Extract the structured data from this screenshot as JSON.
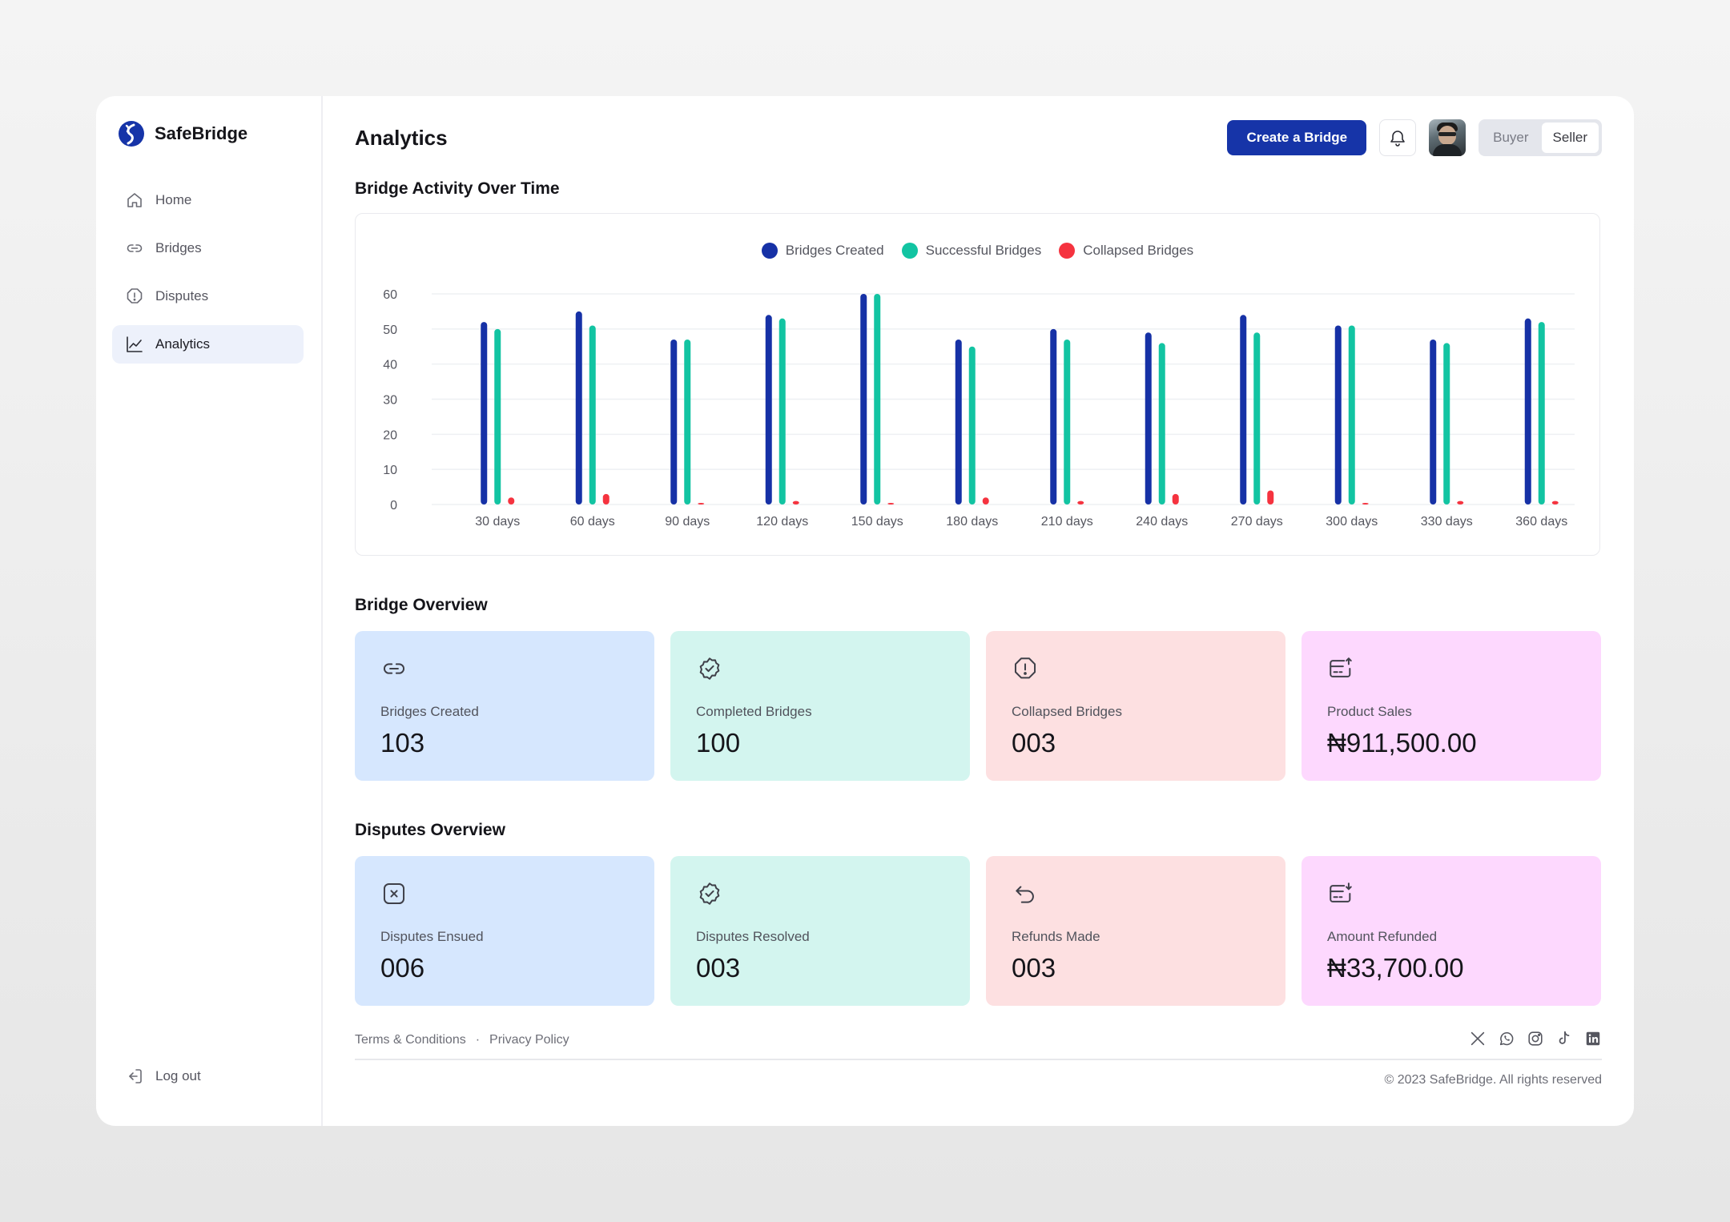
{
  "app": {
    "name": "SafeBridge"
  },
  "sidebar": {
    "items": [
      {
        "label": "Home",
        "icon": "home-icon"
      },
      {
        "label": "Bridges",
        "icon": "link-icon"
      },
      {
        "label": "Disputes",
        "icon": "alert-octagon-icon"
      },
      {
        "label": "Analytics",
        "icon": "line-chart-icon",
        "active": true
      }
    ],
    "logout_label": "Log out"
  },
  "header": {
    "title": "Analytics",
    "create_label": "Create a Bridge",
    "toggle": {
      "buyer": "Buyer",
      "seller": "Seller",
      "selected": "Seller"
    }
  },
  "activity": {
    "title": "Bridge Activity Over Time"
  },
  "chart_data": {
    "type": "bar",
    "title": "",
    "categories": [
      "30 days",
      "60 days",
      "90 days",
      "120 days",
      "150 days",
      "180 days",
      "210 days",
      "240 days",
      "270 days",
      "300 days",
      "330 days",
      "360 days"
    ],
    "series": [
      {
        "name": "Bridges Created",
        "color": "#1631a6",
        "values": [
          52,
          55,
          47,
          54,
          60,
          47,
          50,
          49,
          54,
          51,
          47,
          53
        ]
      },
      {
        "name": "Successful Bridges",
        "color": "#12c4a2",
        "values": [
          50,
          51,
          47,
          53,
          60,
          45,
          47,
          46,
          49,
          51,
          46,
          52
        ]
      },
      {
        "name": "Collapsed Bridges",
        "color": "#f5333f",
        "values": [
          2,
          3,
          0,
          1,
          0,
          2,
          1,
          3,
          4,
          0,
          1,
          1
        ]
      }
    ],
    "yticks": [
      0,
      10,
      20,
      30,
      40,
      50,
      60
    ],
    "ylim": [
      0,
      60
    ],
    "grid": true,
    "legend": "top-center"
  },
  "bridge_overview": {
    "title": "Bridge Overview",
    "cards": [
      {
        "label": "Bridges Created",
        "value": "103",
        "icon": "link-icon"
      },
      {
        "label": "Completed Bridges",
        "value": "100",
        "icon": "badge-check-icon"
      },
      {
        "label": "Collapsed Bridges",
        "value": "003",
        "icon": "alert-octagon-icon"
      },
      {
        "label": "Product Sales",
        "value": "₦911,500.00",
        "icon": "card-upload-icon"
      }
    ]
  },
  "disputes_overview": {
    "title": "Disputes Overview",
    "cards": [
      {
        "label": "Disputes Ensued",
        "value": "006",
        "icon": "x-square-icon"
      },
      {
        "label": "Disputes Resolved",
        "value": "003",
        "icon": "badge-check-icon"
      },
      {
        "label": "Refunds Made",
        "value": "003",
        "icon": "undo-arrow-icon"
      },
      {
        "label": "Amount Refunded",
        "value": "₦33,700.00",
        "icon": "card-download-icon"
      }
    ]
  },
  "footer": {
    "terms": "Terms & Conditions",
    "separator": "·",
    "privacy": "Privacy Policy",
    "copyright": "© 2023 SafeBridge. All rights reserved",
    "socials": [
      "x-icon",
      "whatsapp-icon",
      "instagram-icon",
      "tiktok-icon",
      "linkedin-icon"
    ]
  },
  "colors": {
    "primary": "#1634a8",
    "accent_green": "#12c4a2",
    "accent_red": "#f5333f"
  }
}
